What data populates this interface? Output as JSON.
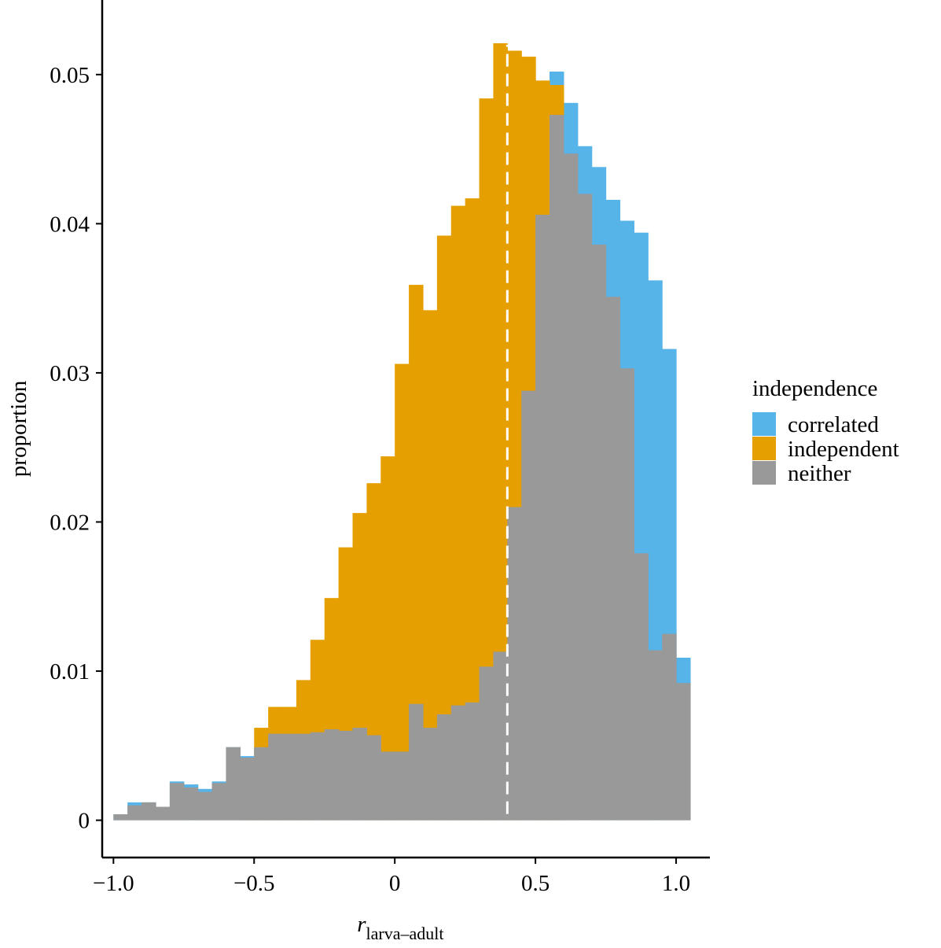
{
  "chart_data": {
    "type": "bar",
    "subtype": "overlaid-histogram",
    "title": "",
    "xlabel": "r",
    "xlabel_subscript": "larva–adult",
    "ylabel": "proportion",
    "xlim": [
      -1.04,
      1.12
    ],
    "ylim": [
      -0.0025,
      0.055
    ],
    "bin_width": 0.05,
    "x_ticks": [
      -1.0,
      -0.5,
      0.0,
      0.5,
      1.0
    ],
    "x_tick_labels": [
      "−1.0",
      "−0.5",
      "0",
      "0.5",
      "1.0"
    ],
    "y_ticks": [
      0,
      0.01,
      0.02,
      0.03,
      0.04,
      0.05
    ],
    "y_tick_labels": [
      "0",
      "0.01",
      "0.02",
      "0.03",
      "0.04",
      "0.05"
    ],
    "grid": false,
    "legend_position": "right",
    "legend_title": "independence",
    "reference_line": {
      "x": 0.4,
      "style": "dashed",
      "color": "#ffffff"
    },
    "x": [
      -0.975,
      -0.925,
      -0.875,
      -0.825,
      -0.775,
      -0.725,
      -0.675,
      -0.625,
      -0.575,
      -0.525,
      -0.475,
      -0.425,
      -0.375,
      -0.325,
      -0.275,
      -0.225,
      -0.175,
      -0.125,
      -0.075,
      -0.025,
      0.025,
      0.075,
      0.125,
      0.175,
      0.225,
      0.275,
      0.325,
      0.375,
      0.425,
      0.475,
      0.525,
      0.575,
      0.625,
      0.675,
      0.725,
      0.775,
      0.825,
      0.875,
      0.925,
      0.975,
      1.025
    ],
    "series": [
      {
        "name": "correlated",
        "color": "#56B4E9",
        "values": [
          0.0004,
          0.0012,
          0.0012,
          0.0009,
          0.0026,
          0.0024,
          0.0021,
          0.0026,
          0.0049,
          0.0043,
          0.0049,
          0.0059,
          0.0058,
          0.0058,
          0.0061,
          0.0061,
          0.0061,
          0.0062,
          0.0059,
          0.0047,
          0.0047,
          0.0079,
          0.0063,
          0.0074,
          0.0079,
          0.0081,
          0.0105,
          0.0119,
          0.0216,
          0.0293,
          0.0494,
          0.0502,
          0.0481,
          0.0452,
          0.0438,
          0.0416,
          0.0402,
          0.0394,
          0.0362,
          0.0316,
          0.0109
        ]
      },
      {
        "name": "independent",
        "color": "#E69F00",
        "values": [
          0,
          0,
          0,
          0,
          0,
          0,
          0,
          0,
          0,
          0.0042,
          0.0062,
          0.0076,
          0.0076,
          0.0094,
          0.0121,
          0.0149,
          0.0183,
          0.0206,
          0.0226,
          0.0244,
          0.0306,
          0.0359,
          0.0342,
          0.0392,
          0.0412,
          0.0417,
          0.0484,
          0.0521,
          0.0516,
          0.0512,
          0.0496,
          0.0493,
          0,
          0,
          0,
          0,
          0,
          0,
          0,
          0,
          0
        ]
      },
      {
        "name": "neither",
        "color": "#999999",
        "values": [
          0.0004,
          0.001,
          0.0012,
          0.0009,
          0.0025,
          0.0022,
          0.0019,
          0.0025,
          0.0049,
          0.0042,
          0.0049,
          0.0058,
          0.0058,
          0.0058,
          0.0059,
          0.0061,
          0.006,
          0.0062,
          0.0057,
          0.0046,
          0.0046,
          0.0078,
          0.0062,
          0.0071,
          0.0077,
          0.0079,
          0.0103,
          0.0113,
          0.021,
          0.0288,
          0.0406,
          0.0473,
          0.0447,
          0.042,
          0.0386,
          0.0351,
          0.0303,
          0.0179,
          0.0114,
          0.0125,
          0.0092
        ]
      }
    ]
  }
}
